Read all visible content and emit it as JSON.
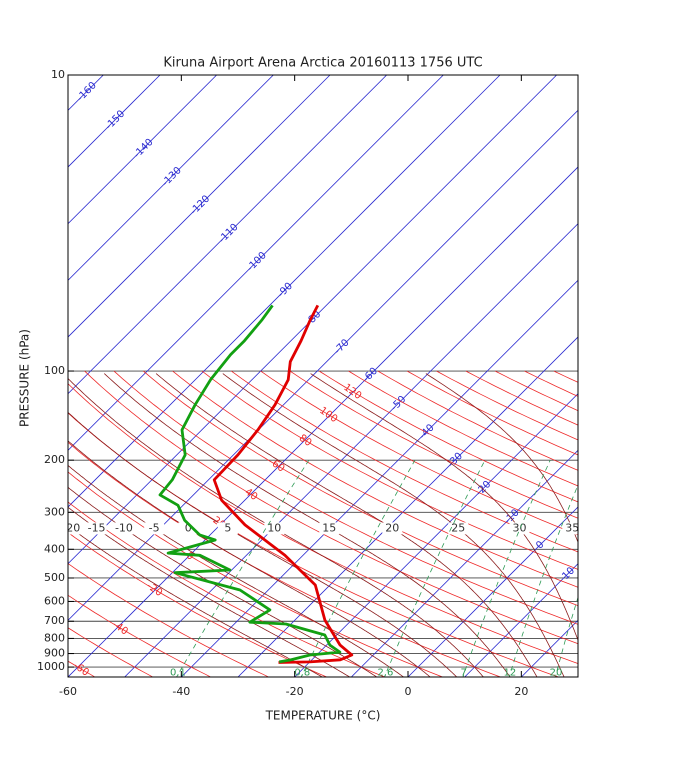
{
  "chart_data": {
    "type": "skewt",
    "title": "Kiruna Airport Arena Arctica 20160113 1756 UTC",
    "xlabel": "TEMPERATURE (°C)",
    "ylabel": "PRESSURE  (hPa)",
    "xlim": [
      -60,
      30
    ],
    "ylim": [
      1080,
      10
    ],
    "log_y": true,
    "xticks": [
      -60,
      -40,
      -20,
      0,
      20
    ],
    "yticks": [
      10,
      100,
      200,
      300,
      400,
      500,
      600,
      700,
      800,
      900,
      1000
    ],
    "grid": true,
    "isotherms": {
      "color": "#2a2ad0",
      "values": [
        -160,
        -150,
        -140,
        -130,
        -120,
        -110,
        -100,
        -90,
        -80,
        -70,
        -60,
        -50,
        -40,
        -30,
        -20,
        -10,
        0,
        10,
        20,
        30
      ]
    },
    "dry_adiabats": {
      "color": "#ee2a2a",
      "values": [
        -70,
        -60,
        -50,
        -40,
        -30,
        -20,
        -10,
        0,
        10,
        20,
        30,
        40,
        50,
        60,
        70,
        80,
        90,
        100,
        110,
        120,
        130,
        140,
        150,
        160,
        170,
        180,
        190,
        200
      ]
    },
    "moist_adiabats": {
      "color": "#8b1c1c",
      "values": [
        -20,
        -15,
        -10,
        -5,
        0,
        5,
        10,
        15,
        20,
        25,
        30,
        35
      ]
    },
    "mixing_ratio": {
      "color": "#2e9a55",
      "values": [
        0.1,
        0.8,
        2.6,
        7,
        12,
        20
      ]
    },
    "series": [
      {
        "color": "#e00000",
        "pressure": [
          60,
          67,
          79,
          93,
          107,
          130,
          158,
          192,
          233,
          273,
          331,
          419,
          528,
          694,
          843,
          910,
          945,
          960,
          965
        ],
        "values": [
          -81.5,
          -80.3,
          -78.2,
          -76.4,
          -73.6,
          -71.5,
          -70.1,
          -69.2,
          -69,
          -64.1,
          -55.6,
          -43.2,
          -32.6,
          -24.7,
          -17.6,
          -13.8,
          -15,
          -20,
          -25.4
        ]
      },
      {
        "color": "#12a012",
        "pressure": [
          60,
          67,
          79,
          88,
          107,
          130,
          158,
          192,
          233,
          262,
          284,
          319,
          358,
          372,
          412,
          419,
          470,
          480,
          549,
          641,
          705,
          715,
          779,
          843,
          890,
          910,
          946,
          960
        ],
        "values": [
          -89.5,
          -88.8,
          -88.2,
          -88.2,
          -87.3,
          -85.6,
          -83.5,
          -78.5,
          -76.4,
          -75.9,
          -70.9,
          -67.1,
          -61.8,
          -58.2,
          -64.2,
          -58.2,
          -50.3,
          -59.5,
          -45,
          -36.2,
          -37.6,
          -30.9,
          -22.1,
          -19.4,
          -16.4,
          -21.2,
          -23.8,
          -25.4
        ]
      }
    ]
  }
}
